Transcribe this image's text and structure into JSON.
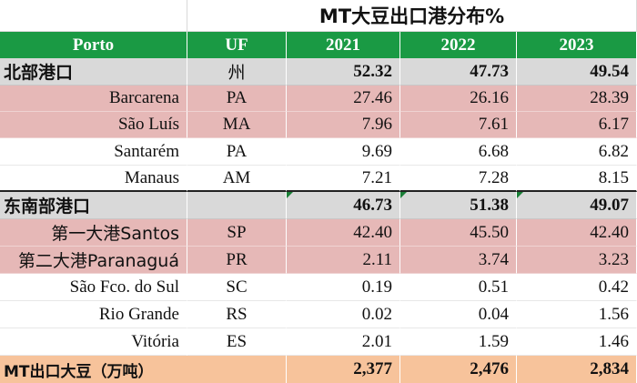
{
  "title": "MT大豆出口港分布%",
  "headers": {
    "porto": "Porto",
    "uf": "UF",
    "y2021": "2021",
    "y2022": "2022",
    "y2023": "2023"
  },
  "rows": [
    {
      "port": "北部港口",
      "uf": "州",
      "v2021": "52.32",
      "v2022": "47.73",
      "v2023": "49.54"
    },
    {
      "port": "Barcarena",
      "uf": "PA",
      "v2021": "27.46",
      "v2022": "26.16",
      "v2023": "28.39"
    },
    {
      "port": "São Luís",
      "uf": "MA",
      "v2021": "7.96",
      "v2022": "7.61",
      "v2023": "6.17"
    },
    {
      "port": "Santarém",
      "uf": "PA",
      "v2021": "9.69",
      "v2022": "6.68",
      "v2023": "6.82"
    },
    {
      "port": "Manaus",
      "uf": "AM",
      "v2021": "7.21",
      "v2022": "7.28",
      "v2023": "8.15"
    },
    {
      "port": "东南部港口",
      "uf": "",
      "v2021": "46.73",
      "v2022": "51.38",
      "v2023": "49.07"
    },
    {
      "port": "第一大港Santos",
      "uf": "SP",
      "v2021": "42.40",
      "v2022": "45.50",
      "v2023": "42.40"
    },
    {
      "port": "第二大港Paranaguá",
      "uf": "PR",
      "v2021": "2.11",
      "v2022": "3.74",
      "v2023": "3.23"
    },
    {
      "port": "São Fco. do Sul",
      "uf": "SC",
      "v2021": "0.19",
      "v2022": "0.51",
      "v2023": "0.42"
    },
    {
      "port": "Rio Grande",
      "uf": "RS",
      "v2021": "0.02",
      "v2022": "0.04",
      "v2023": "1.56"
    },
    {
      "port": "Vitória",
      "uf": "ES",
      "v2021": "2.01",
      "v2022": "1.59",
      "v2023": "1.46"
    }
  ],
  "total": {
    "label": "MT出口大豆（万吨）",
    "v2021": "2,377",
    "v2022": "2,476",
    "v2023": "2,834"
  },
  "colors": {
    "header_green": "#1a9a44",
    "group_gray": "#d9d9d9",
    "highlight_pink": "#e6b8b7",
    "total_orange": "#f7c39b",
    "comment_flag": "#1a7f37"
  }
}
